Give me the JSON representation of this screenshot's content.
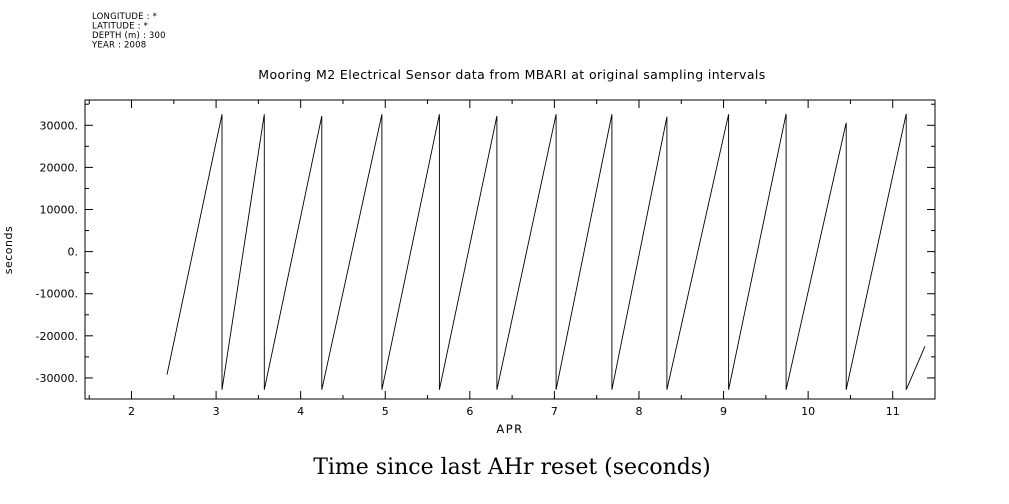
{
  "meta": {
    "lines": [
      "LONGITUDE : *",
      "LATITUDE : *",
      "DEPTH (m) : 300",
      "YEAR : 2008"
    ]
  },
  "caption": "Time since last AHr reset (seconds)",
  "chart_data": {
    "type": "line",
    "title": "Mooring M2 Electrical Sensor data from MBARI at original sampling intervals",
    "xlabel": "APR",
    "ylabel": "seconds",
    "xlim": [
      1.45,
      11.5
    ],
    "ylim": [
      -35000,
      36000
    ],
    "xticks": [
      2,
      3,
      4,
      5,
      6,
      7,
      8,
      9,
      10,
      11
    ],
    "xtick_labels": [
      "2",
      "3",
      "4",
      "5",
      "6",
      "7",
      "8",
      "9",
      "10",
      "11"
    ],
    "x_minor_step": 0.5,
    "yticks": [
      -30000,
      -20000,
      -10000,
      0,
      10000,
      20000,
      30000
    ],
    "ytick_labels": [
      "-30000.",
      "-20000.",
      "-10000.",
      "0.",
      "10000.",
      "20000.",
      "30000."
    ],
    "y_minor_step": 5000,
    "grid": false,
    "legend": "none",
    "line_color": "#000000",
    "background": "#ffffff",
    "series": [
      {
        "name": "time-since-ahr-reset",
        "description": "sawtooth: seconds counter rising to ~+32700 then wrapping to ~-32800 at each reset",
        "segment_start": {
          "x": 2.42,
          "y": -29200
        },
        "reset_x": [
          3.07,
          3.57,
          4.25,
          4.96,
          5.64,
          6.32,
          7.02,
          7.68,
          8.33,
          9.06,
          9.74,
          10.45,
          11.16
        ],
        "peak_values": [
          32600,
          32600,
          32200,
          32600,
          32600,
          32200,
          32600,
          32600,
          32000,
          32600,
          32700,
          30600,
          32700
        ],
        "trough_value": -32800,
        "tail_end": {
          "x": 11.38,
          "y": -22500
        }
      }
    ]
  }
}
